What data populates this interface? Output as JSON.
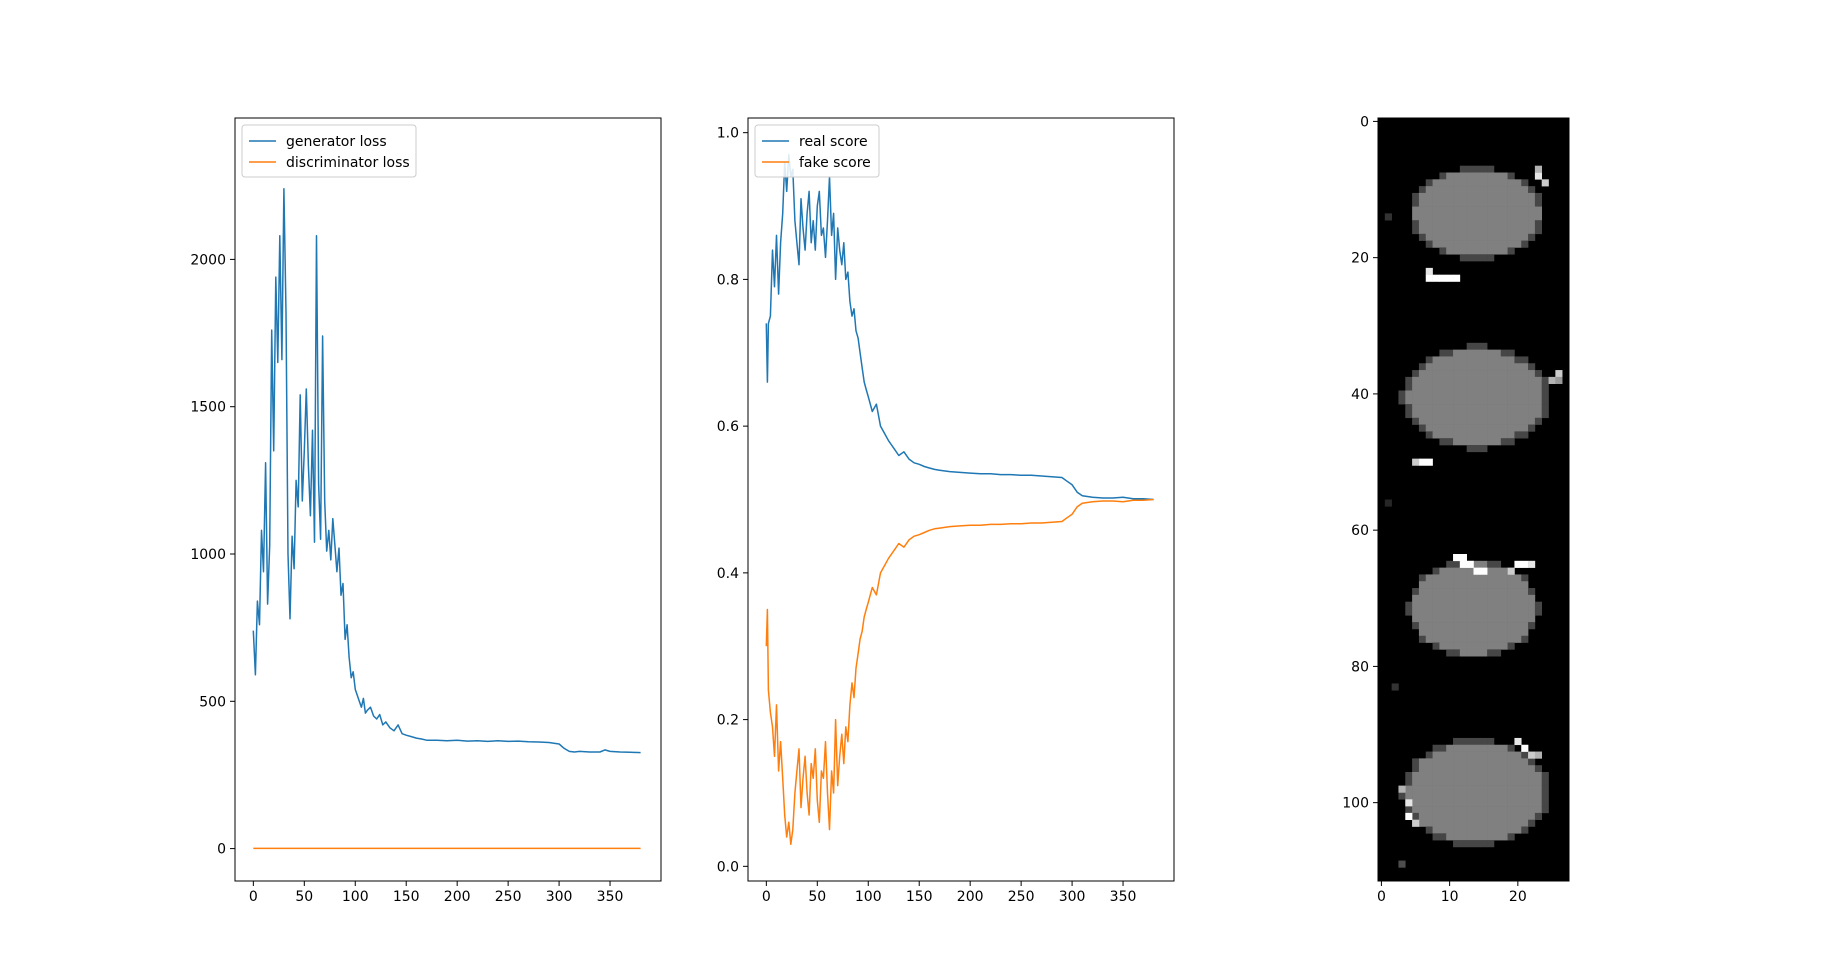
{
  "chart_data": [
    {
      "type": "line",
      "title": "",
      "xlabel": "",
      "ylabel": "",
      "xlim": [
        -18,
        400
      ],
      "ylim": [
        -110,
        2480
      ],
      "xticks": [
        0,
        50,
        100,
        150,
        200,
        250,
        300,
        350
      ],
      "yticks": [
        0,
        500,
        1000,
        1500,
        2000
      ],
      "xtick_labels": [
        "0",
        "50",
        "100",
        "150",
        "200",
        "250",
        "300",
        "350"
      ],
      "ytick_labels": [
        "0",
        "500",
        "1000",
        "1500",
        "2000"
      ],
      "legend": "upper-left",
      "grid": false,
      "series": [
        {
          "name": "generator loss",
          "color": "#1f77b4",
          "x": [
            0,
            2,
            4,
            6,
            8,
            10,
            12,
            14,
            16,
            18,
            20,
            22,
            24,
            26,
            28,
            30,
            32,
            34,
            36,
            38,
            40,
            42,
            44,
            46,
            48,
            50,
            52,
            54,
            56,
            58,
            60,
            62,
            64,
            66,
            68,
            70,
            72,
            74,
            76,
            78,
            80,
            82,
            84,
            86,
            88,
            90,
            92,
            94,
            96,
            98,
            100,
            102,
            104,
            106,
            108,
            110,
            112,
            115,
            118,
            121,
            124,
            127,
            130,
            134,
            138,
            142,
            146,
            150,
            155,
            160,
            165,
            170,
            180,
            190,
            200,
            210,
            220,
            230,
            240,
            250,
            260,
            270,
            280,
            290,
            300,
            305,
            310,
            315,
            320,
            330,
            340,
            345,
            350,
            360,
            370,
            380
          ],
          "y": [
            740,
            590,
            840,
            760,
            1080,
            940,
            1310,
            830,
            1030,
            1760,
            1350,
            1940,
            1650,
            2080,
            1660,
            2240,
            1820,
            1000,
            780,
            1060,
            950,
            1250,
            1160,
            1540,
            1180,
            1350,
            1560,
            1300,
            1130,
            1420,
            1040,
            2080,
            1240,
            1050,
            1740,
            1180,
            1010,
            1080,
            980,
            1120,
            1030,
            940,
            1020,
            860,
            900,
            710,
            760,
            650,
            580,
            600,
            540,
            520,
            500,
            480,
            510,
            460,
            470,
            480,
            450,
            440,
            455,
            420,
            430,
            410,
            400,
            420,
            390,
            385,
            380,
            375,
            372,
            368,
            368,
            366,
            368,
            365,
            366,
            364,
            366,
            364,
            365,
            363,
            362,
            360,
            355,
            340,
            330,
            328,
            330,
            328,
            328,
            335,
            330,
            328,
            327,
            326
          ]
        },
        {
          "name": "discriminator loss",
          "color": "#ff7f0e",
          "x": [
            0,
            380
          ],
          "y": [
            0.5,
            0.5
          ]
        }
      ]
    },
    {
      "type": "line",
      "title": "",
      "xlabel": "",
      "ylabel": "",
      "xlim": [
        -18,
        400
      ],
      "ylim": [
        -0.02,
        1.02
      ],
      "xticks": [
        0,
        50,
        100,
        150,
        200,
        250,
        300,
        350
      ],
      "yticks": [
        0.0,
        0.2,
        0.4,
        0.6,
        0.8,
        1.0
      ],
      "xtick_labels": [
        "0",
        "50",
        "100",
        "150",
        "200",
        "250",
        "300",
        "350"
      ],
      "ytick_labels": [
        "0.0",
        "0.2",
        "0.4",
        "0.6",
        "0.8",
        "1.0"
      ],
      "legend": "upper-left",
      "grid": false,
      "series": [
        {
          "name": "real score",
          "color": "#1f77b4",
          "x": [
            0,
            1,
            2,
            4,
            6,
            8,
            10,
            12,
            14,
            16,
            18,
            20,
            22,
            24,
            26,
            28,
            30,
            32,
            34,
            36,
            38,
            40,
            42,
            44,
            46,
            48,
            50,
            52,
            54,
            56,
            58,
            60,
            62,
            64,
            66,
            68,
            70,
            72,
            74,
            76,
            78,
            80,
            82,
            84,
            86,
            88,
            90,
            92,
            94,
            96,
            98,
            100,
            104,
            108,
            112,
            116,
            120,
            125,
            130,
            135,
            140,
            145,
            150,
            155,
            160,
            165,
            170,
            180,
            190,
            200,
            210,
            220,
            230,
            240,
            250,
            260,
            270,
            280,
            290,
            295,
            300,
            305,
            310,
            320,
            330,
            340,
            350,
            360,
            370,
            380
          ],
          "y": [
            0.74,
            0.66,
            0.74,
            0.75,
            0.84,
            0.79,
            0.86,
            0.78,
            0.85,
            0.89,
            0.96,
            0.92,
            0.97,
            0.94,
            0.95,
            0.88,
            0.85,
            0.82,
            0.91,
            0.87,
            0.84,
            0.89,
            0.92,
            0.85,
            0.88,
            0.84,
            0.9,
            0.92,
            0.86,
            0.87,
            0.83,
            0.88,
            0.94,
            0.86,
            0.89,
            0.8,
            0.87,
            0.84,
            0.82,
            0.85,
            0.8,
            0.81,
            0.77,
            0.75,
            0.76,
            0.73,
            0.72,
            0.7,
            0.68,
            0.66,
            0.65,
            0.64,
            0.62,
            0.63,
            0.6,
            0.59,
            0.58,
            0.57,
            0.56,
            0.565,
            0.555,
            0.55,
            0.548,
            0.545,
            0.543,
            0.541,
            0.54,
            0.538,
            0.537,
            0.536,
            0.535,
            0.535,
            0.534,
            0.534,
            0.533,
            0.533,
            0.532,
            0.531,
            0.53,
            0.525,
            0.52,
            0.51,
            0.505,
            0.503,
            0.502,
            0.502,
            0.503,
            0.501,
            0.501,
            0.5
          ]
        },
        {
          "name": "fake score",
          "color": "#ff7f0e",
          "x": [
            0,
            1,
            2,
            4,
            6,
            8,
            10,
            12,
            14,
            16,
            18,
            20,
            22,
            24,
            26,
            28,
            30,
            32,
            34,
            36,
            38,
            40,
            42,
            44,
            46,
            48,
            50,
            52,
            54,
            56,
            58,
            60,
            62,
            64,
            66,
            68,
            70,
            72,
            74,
            76,
            78,
            80,
            82,
            84,
            86,
            88,
            90,
            92,
            94,
            96,
            98,
            100,
            104,
            108,
            112,
            116,
            120,
            125,
            130,
            135,
            140,
            145,
            150,
            155,
            160,
            165,
            170,
            180,
            190,
            200,
            210,
            220,
            230,
            240,
            250,
            260,
            270,
            280,
            290,
            295,
            300,
            305,
            310,
            320,
            330,
            340,
            350,
            360,
            370,
            380
          ],
          "y": [
            0.3,
            0.35,
            0.24,
            0.21,
            0.19,
            0.15,
            0.22,
            0.13,
            0.17,
            0.12,
            0.07,
            0.04,
            0.06,
            0.03,
            0.05,
            0.1,
            0.13,
            0.16,
            0.08,
            0.12,
            0.15,
            0.1,
            0.07,
            0.14,
            0.12,
            0.16,
            0.09,
            0.06,
            0.13,
            0.12,
            0.17,
            0.1,
            0.05,
            0.13,
            0.1,
            0.2,
            0.11,
            0.15,
            0.18,
            0.14,
            0.19,
            0.17,
            0.22,
            0.25,
            0.23,
            0.27,
            0.29,
            0.31,
            0.32,
            0.34,
            0.35,
            0.36,
            0.38,
            0.37,
            0.4,
            0.41,
            0.42,
            0.43,
            0.44,
            0.435,
            0.445,
            0.45,
            0.452,
            0.455,
            0.458,
            0.46,
            0.461,
            0.463,
            0.464,
            0.465,
            0.465,
            0.466,
            0.466,
            0.467,
            0.467,
            0.468,
            0.468,
            0.469,
            0.47,
            0.475,
            0.48,
            0.49,
            0.495,
            0.497,
            0.498,
            0.498,
            0.497,
            0.499,
            0.499,
            0.5
          ]
        }
      ]
    },
    {
      "type": "heatmap",
      "title": "",
      "xlabel": "",
      "ylabel": "",
      "colormap": "gray",
      "xlim": [
        -0.5,
        27.5
      ],
      "ylim": [
        111.5,
        -0.5
      ],
      "xticks": [
        0,
        10,
        20
      ],
      "yticks": [
        0,
        20,
        40,
        60,
        80,
        100
      ],
      "xtick_labels": [
        "0",
        "10",
        "20"
      ],
      "ytick_labels": [
        "0",
        "20",
        "40",
        "60",
        "80",
        "100"
      ],
      "grid": false,
      "background": 0,
      "blobs": [
        {
          "cx": 14,
          "cy": 13.5,
          "rx": 9.2,
          "ry": 6.2,
          "value": 0.5
        },
        {
          "cx": 13.8,
          "cy": 40.5,
          "rx": 10.0,
          "ry": 7.0,
          "value": 0.5
        },
        {
          "cx": 13.5,
          "cy": 71.5,
          "rx": 8.8,
          "ry": 6.7,
          "value": 0.5
        },
        {
          "cx": 13.8,
          "cy": 98.5,
          "rx": 10.0,
          "ry": 7.2,
          "value": 0.5
        }
      ],
      "bright_pixels": [
        [
          7,
          23,
          1
        ],
        [
          8,
          23,
          1
        ],
        [
          9,
          23,
          1
        ],
        [
          10,
          23,
          1
        ],
        [
          11,
          23,
          1
        ],
        [
          7,
          22,
          0.9
        ],
        [
          6,
          50,
          1
        ],
        [
          7,
          50,
          1
        ],
        [
          5,
          50,
          0.8
        ],
        [
          11,
          64,
          1
        ],
        [
          12,
          64,
          1
        ],
        [
          12,
          65,
          1
        ],
        [
          13,
          65,
          1
        ],
        [
          14,
          66,
          1
        ],
        [
          15,
          66,
          1
        ],
        [
          20,
          65,
          1
        ],
        [
          21,
          65,
          1
        ],
        [
          22,
          65,
          0.9
        ],
        [
          19,
          66,
          0.8
        ],
        [
          23,
          8,
          0.9
        ],
        [
          24,
          9,
          0.8
        ],
        [
          23,
          7,
          0.7
        ],
        [
          26,
          37,
          0.8
        ],
        [
          25,
          38,
          0.7
        ],
        [
          26,
          38,
          0.6
        ],
        [
          20,
          91,
          0.9
        ],
        [
          21,
          92,
          1
        ],
        [
          22,
          93,
          0.8
        ],
        [
          23,
          93,
          0.7
        ],
        [
          4,
          100,
          0.9
        ],
        [
          4,
          102,
          1
        ],
        [
          5,
          103,
          0.8
        ],
        [
          3,
          98,
          0.7
        ],
        [
          3,
          109,
          0.3
        ],
        [
          1,
          14,
          0.2
        ],
        [
          1,
          56,
          0.15
        ],
        [
          2,
          83,
          0.2
        ]
      ]
    }
  ]
}
